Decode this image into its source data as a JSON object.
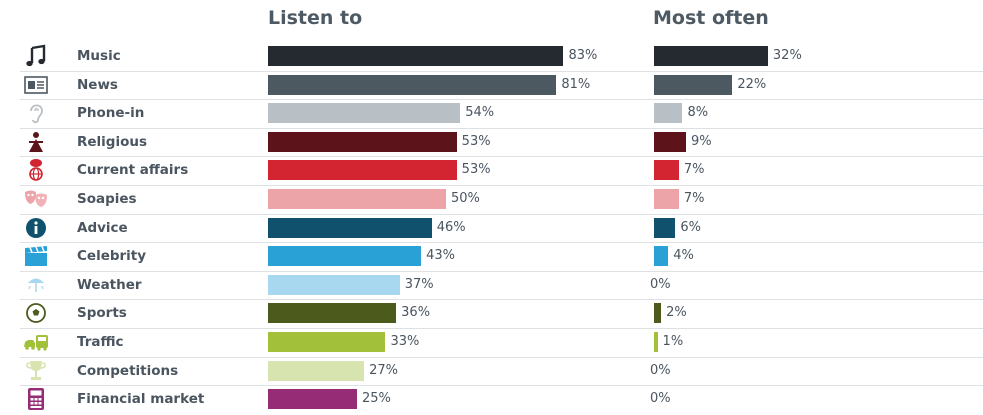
{
  "headers": {
    "listen_to": "Listen to",
    "most_often": "Most often"
  },
  "chart_data": {
    "type": "bar",
    "orientation": "horizontal",
    "categories": [
      "Music",
      "News",
      "Phone-in",
      "Religious",
      "Current affairs",
      "Soapies",
      "Advice",
      "Celebrity",
      "Weather",
      "Sports",
      "Traffic",
      "Competitions",
      "Financial market"
    ],
    "series": [
      {
        "name": "Listen to",
        "values": [
          83,
          81,
          54,
          53,
          53,
          50,
          46,
          43,
          37,
          36,
          33,
          27,
          25
        ]
      },
      {
        "name": "Most often",
        "values": [
          32,
          22,
          8,
          9,
          7,
          7,
          6,
          4,
          0,
          2,
          1,
          0,
          0
        ]
      }
    ],
    "value_labels": {
      "listen_to": [
        "83%",
        "81%",
        "54%",
        "53%",
        "53%",
        "50%",
        "46%",
        "43%",
        "37%",
        "36%",
        "33%",
        "27%",
        "25%"
      ],
      "most_often": [
        "32%",
        "22%",
        "8%",
        "9%",
        "7%",
        "7%",
        "6%",
        "4%",
        "0%",
        "2%",
        "1%",
        "0%",
        "0%"
      ]
    },
    "colors": [
      "#252a31",
      "#4d5961",
      "#b8c0c5",
      "#5c131a",
      "#d22531",
      "#eda4a9",
      "#10516d",
      "#2aa1d6",
      "#a8d8ef",
      "#4c5a1c",
      "#a2c03a",
      "#d8e4b0",
      "#962b76"
    ],
    "icons": [
      "music-note-icon",
      "newspaper-icon",
      "ear-icon",
      "religious-figure-icon",
      "globe-speaker-icon",
      "theatre-masks-icon",
      "info-icon",
      "clapperboard-icon",
      "weather-icon",
      "soccer-ball-icon",
      "car-bus-icon",
      "trophy-icon",
      "calculator-icon"
    ]
  }
}
